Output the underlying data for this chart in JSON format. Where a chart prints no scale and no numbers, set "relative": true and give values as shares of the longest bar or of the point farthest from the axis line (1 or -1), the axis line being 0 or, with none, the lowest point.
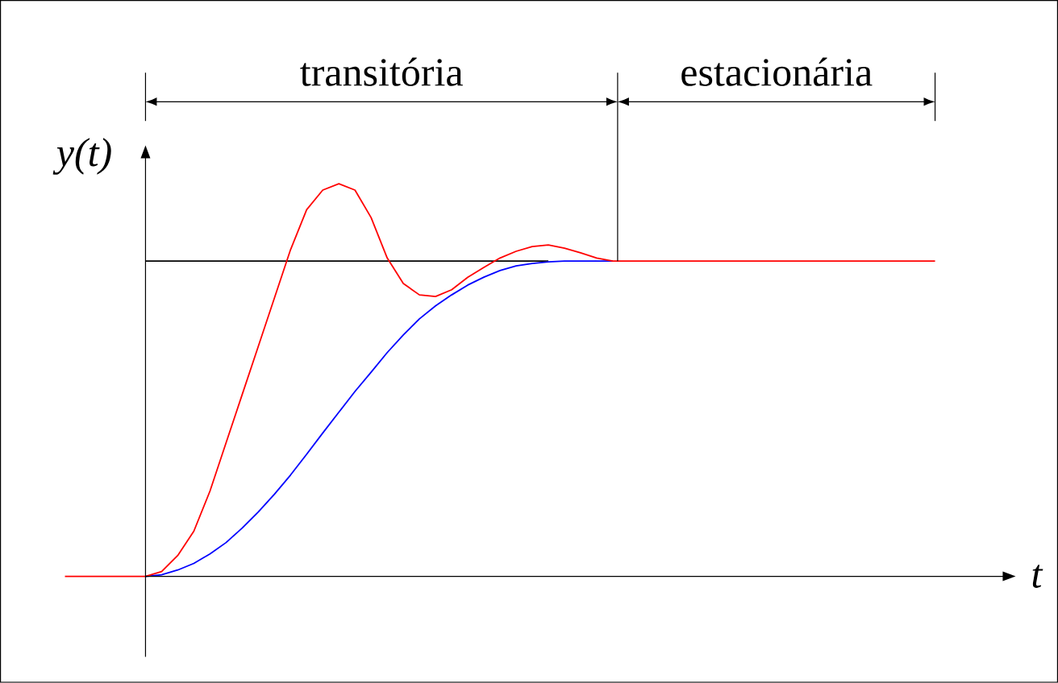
{
  "chart_data": {
    "type": "line",
    "relative": true,
    "xlabel": "t",
    "ylabel": "y(t)",
    "annotations": [
      "transitória",
      "estacionária"
    ],
    "categories": [
      null,
      null,
      null,
      null,
      null,
      null,
      null,
      null,
      null,
      null,
      null,
      null,
      null,
      null,
      null,
      null,
      null,
      null,
      null,
      null,
      null,
      null,
      null,
      null,
      null,
      null,
      null,
      null,
      null,
      null,
      null,
      null,
      null,
      null,
      null,
      null,
      null,
      null,
      null,
      null,
      null,
      null,
      null,
      null,
      null,
      null,
      null,
      null,
      null,
      null,
      null,
      null,
      null,
      null,
      null
    ],
    "series": [
      {
        "color": "#000000",
        "values": [
          null,
          null,
          null,
          null,
          null,
          0.803,
          0.803,
          0.803,
          0.803,
          0.803,
          0.803,
          0.803,
          0.803,
          0.803,
          0.803,
          0.803,
          0.803,
          0.803,
          0.803,
          0.803,
          0.803,
          0.803,
          0.803,
          0.803,
          0.803,
          0.803,
          0.803,
          0.803,
          0.803,
          0.803,
          0.803,
          null,
          null,
          null,
          null,
          null,
          null,
          null,
          null,
          null,
          null,
          null,
          null,
          null,
          null,
          null,
          null,
          null,
          null,
          null,
          null,
          null,
          null,
          null,
          null
        ]
      },
      {
        "color": "#0000ff",
        "values": [
          null,
          null,
          null,
          null,
          null,
          0,
          0.004,
          0.016,
          0.033,
          0.057,
          0.086,
          0.123,
          0.164,
          0.209,
          0.258,
          0.311,
          0.365,
          0.418,
          0.471,
          0.52,
          0.57,
          0.615,
          0.656,
          0.689,
          0.717,
          0.742,
          0.762,
          0.779,
          0.791,
          0.797,
          0.801,
          0.803,
          0.803,
          0.803,
          0.803,
          null,
          null,
          null,
          null,
          null,
          null,
          null,
          null,
          null,
          null,
          null,
          null,
          null,
          null,
          null,
          null,
          null,
          null,
          null,
          null
        ]
      },
      {
        "color": "#ff0000",
        "values": [
          0,
          0,
          0,
          0,
          0,
          0,
          0.012,
          0.053,
          0.115,
          0.217,
          0.34,
          0.463,
          0.586,
          0.709,
          0.832,
          0.934,
          0.984,
          1,
          0.984,
          0.914,
          0.811,
          0.746,
          0.717,
          0.713,
          0.73,
          0.762,
          0.787,
          0.811,
          0.828,
          0.84,
          0.844,
          0.836,
          0.824,
          0.811,
          0.803,
          0.803,
          0.803,
          0.803,
          0.803,
          0.803,
          0.803,
          0.803,
          0.803,
          0.803,
          0.803,
          0.803,
          0.803,
          0.803,
          0.803,
          0.803,
          0.803,
          0.803,
          0.803,
          0.803,
          0.803
        ]
      }
    ]
  }
}
